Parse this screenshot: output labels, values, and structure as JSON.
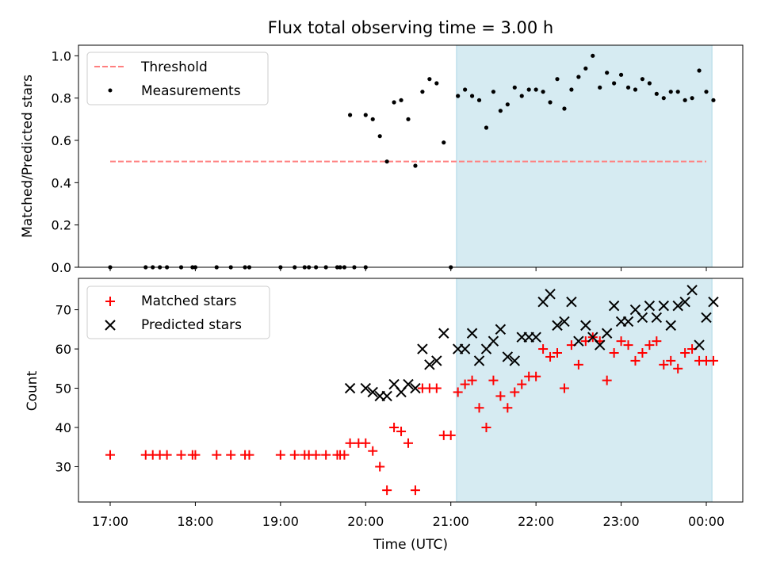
{
  "chart_data": [
    {
      "type": "scatter",
      "title": "Flux total observing time = 3.00 h",
      "ylabel": "Matched/Predicted stars",
      "xlabel": "",
      "ylim": [
        0,
        1.05
      ],
      "y_ticks": [
        "0.0",
        "0.2",
        "0.4",
        "0.6",
        "0.8",
        "1.0"
      ],
      "legend_position": "top-left",
      "shaded_interval": [
        "21:04",
        "00:04"
      ],
      "colors": {
        "shade": "#add8e6",
        "threshold": "#ff7f7f",
        "points": "#000000"
      },
      "threshold": {
        "name": "Threshold",
        "value": 0.5,
        "x_range": [
          "17:00",
          "00:00"
        ]
      },
      "series": [
        {
          "name": "Measurements",
          "x": [
            "17:00",
            "17:25",
            "17:30",
            "17:35",
            "17:40",
            "17:50",
            "17:58",
            "18:00",
            "18:15",
            "18:25",
            "18:35",
            "18:38",
            "19:00",
            "19:10",
            "19:17",
            "19:20",
            "19:25",
            "19:32",
            "19:40",
            "19:42",
            "19:45",
            "19:52",
            "20:00",
            "21:00",
            "19:49",
            "20:00",
            "20:05",
            "20:10",
            "20:15",
            "20:20",
            "20:25",
            "20:30",
            "20:35",
            "20:40",
            "20:45",
            "20:50",
            "20:55",
            "21:05",
            "21:10",
            "21:15",
            "21:20",
            "21:25",
            "21:30",
            "21:35",
            "21:40",
            "21:45",
            "21:50",
            "21:55",
            "22:00",
            "22:05",
            "22:10",
            "22:15",
            "22:20",
            "22:25",
            "22:30",
            "22:35",
            "22:40",
            "22:45",
            "22:50",
            "22:55",
            "23:00",
            "23:05",
            "23:10",
            "23:15",
            "23:20",
            "23:25",
            "23:30",
            "23:35",
            "23:40",
            "23:45",
            "23:50",
            "23:55",
            "00:00",
            "00:05"
          ],
          "y": [
            0,
            0,
            0,
            0,
            0,
            0,
            0,
            0,
            0,
            0,
            0,
            0,
            0,
            0,
            0,
            0,
            0,
            0,
            0,
            0,
            0,
            0,
            0,
            0,
            0.72,
            0.72,
            0.7,
            0.62,
            0.5,
            0.78,
            0.79,
            0.7,
            0.48,
            0.83,
            0.89,
            0.87,
            0.59,
            0.81,
            0.84,
            0.81,
            0.79,
            0.66,
            0.83,
            0.74,
            0.77,
            0.85,
            0.81,
            0.84,
            0.84,
            0.83,
            0.78,
            0.89,
            0.75,
            0.84,
            0.9,
            0.94,
            1.0,
            0.85,
            0.92,
            0.87,
            0.91,
            0.85,
            0.84,
            0.89,
            0.87,
            0.82,
            0.8,
            0.83,
            0.83,
            0.79,
            0.8,
            0.93,
            0.83,
            0.79
          ]
        }
      ]
    },
    {
      "type": "scatter",
      "title": "",
      "ylabel": "Count",
      "xlabel": "Time (UTC)",
      "ylim": [
        21,
        78
      ],
      "y_ticks": [
        "30",
        "40",
        "50",
        "60",
        "70"
      ],
      "x_ticks": [
        "17:00",
        "18:00",
        "19:00",
        "20:00",
        "21:00",
        "22:00",
        "23:00",
        "00:00"
      ],
      "legend_position": "top-left",
      "shaded_interval": [
        "21:04",
        "00:04"
      ],
      "colors": {
        "shade": "#add8e6",
        "matched": "#ff0000",
        "predicted": "#000000"
      },
      "series": [
        {
          "name": "Matched stars",
          "x": [
            "17:00",
            "17:25",
            "17:30",
            "17:35",
            "17:40",
            "17:50",
            "17:58",
            "18:00",
            "18:15",
            "18:25",
            "18:35",
            "18:38",
            "19:00",
            "19:10",
            "19:17",
            "19:20",
            "19:25",
            "19:32",
            "19:40",
            "19:42",
            "19:45",
            "19:49",
            "19:55",
            "20:00",
            "20:05",
            "20:10",
            "20:15",
            "20:20",
            "20:25",
            "20:30",
            "20:35",
            "20:40",
            "20:45",
            "20:50",
            "20:55",
            "21:00",
            "21:05",
            "21:10",
            "21:15",
            "21:20",
            "21:25",
            "21:30",
            "21:35",
            "21:40",
            "21:45",
            "21:50",
            "21:55",
            "22:00",
            "22:05",
            "22:10",
            "22:15",
            "22:20",
            "22:25",
            "22:30",
            "22:35",
            "22:40",
            "22:45",
            "22:50",
            "22:55",
            "23:00",
            "23:05",
            "23:10",
            "23:15",
            "23:20",
            "23:25",
            "23:30",
            "23:35",
            "23:40",
            "23:45",
            "23:50",
            "23:55",
            "00:00",
            "00:05"
          ],
          "y": [
            33,
            33,
            33,
            33,
            33,
            33,
            33,
            33,
            33,
            33,
            33,
            33,
            33,
            33,
            33,
            33,
            33,
            33,
            33,
            33,
            33,
            36,
            36,
            36,
            34,
            30,
            24,
            40,
            39,
            36,
            24,
            50,
            50,
            50,
            38,
            38,
            49,
            51,
            52,
            45,
            40,
            52,
            48,
            45,
            49,
            51,
            53,
            53,
            60,
            58,
            59,
            50,
            61,
            56,
            62,
            63,
            62,
            52,
            59,
            62,
            61,
            57,
            59,
            61,
            62,
            56,
            57,
            55,
            59,
            60,
            57,
            57,
            57
          ]
        },
        {
          "name": "Predicted stars",
          "x": [
            "19:49",
            "20:00",
            "20:05",
            "20:10",
            "20:15",
            "20:20",
            "20:25",
            "20:30",
            "20:35",
            "20:40",
            "20:45",
            "20:50",
            "20:55",
            "21:05",
            "21:10",
            "21:15",
            "21:20",
            "21:25",
            "21:30",
            "21:35",
            "21:40",
            "21:45",
            "21:50",
            "21:55",
            "22:00",
            "22:05",
            "22:10",
            "22:15",
            "22:20",
            "22:25",
            "22:30",
            "22:35",
            "22:40",
            "22:45",
            "22:50",
            "22:55",
            "23:00",
            "23:05",
            "23:10",
            "23:15",
            "23:20",
            "23:25",
            "23:30",
            "23:35",
            "23:40",
            "23:45",
            "23:50",
            "23:55",
            "00:00",
            "00:05"
          ],
          "y": [
            50,
            50,
            49,
            48,
            48,
            51,
            49,
            51,
            50,
            60,
            56,
            57,
            64,
            60,
            60,
            64,
            57,
            60,
            62,
            65,
            58,
            57,
            63,
            63,
            63,
            72,
            74,
            66,
            67,
            72,
            62,
            66,
            63,
            61,
            64,
            71,
            67,
            67,
            70,
            68,
            71,
            68,
            71,
            66,
            71,
            72,
            75,
            61,
            68,
            72
          ]
        }
      ]
    }
  ]
}
